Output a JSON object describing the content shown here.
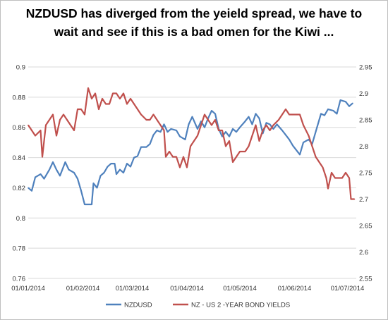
{
  "chart_data": {
    "type": "line",
    "title": "NZDUSD has diverged from the yeield spread, we have to wait and see if this is a bad omen for the Kiwi ...",
    "x_tick_labels": [
      "01/01/2014",
      "01/02/2014",
      "01/03/2014",
      "01/04/2014",
      "01/05/2014",
      "01/06/2014",
      "01/07/2014"
    ],
    "x_range": [
      "01/01/2014",
      "06/07/2014"
    ],
    "y_left": {
      "min": 0.76,
      "max": 0.9,
      "step": 0.02,
      "ticks": [
        "0.76",
        "0.78",
        "0.8",
        "0.82",
        "0.84",
        "0.86",
        "0.88",
        "0.9"
      ]
    },
    "y_right": {
      "min": 2.55,
      "max": 2.95,
      "step": 0.05,
      "ticks": [
        "2.55",
        "2.6",
        "2.65",
        "2.7",
        "2.75",
        "2.8",
        "2.85",
        "2.9",
        "2.95"
      ]
    },
    "grid": {
      "horizontal": true,
      "vertical": false
    },
    "legend_position": "bottom",
    "series": [
      {
        "name": "NZDUSD",
        "axis": "left",
        "color": "#4f81bd",
        "points": [
          [
            "01/01/2014",
            0.82
          ],
          [
            "03/01/2014",
            0.818
          ],
          [
            "05/01/2014",
            0.827
          ],
          [
            "08/01/2014",
            0.829
          ],
          [
            "10/01/2014",
            0.826
          ],
          [
            "13/01/2014",
            0.832
          ],
          [
            "15/01/2014",
            0.837
          ],
          [
            "17/01/2014",
            0.832
          ],
          [
            "19/01/2014",
            0.828
          ],
          [
            "22/01/2014",
            0.837
          ],
          [
            "24/01/2014",
            0.832
          ],
          [
            "27/01/2014",
            0.83
          ],
          [
            "29/01/2014",
            0.826
          ],
          [
            "31/01/2014",
            0.818
          ],
          [
            "02/02/2014",
            0.809
          ],
          [
            "06/02/2014",
            0.809
          ],
          [
            "07/02/2014",
            0.823
          ],
          [
            "09/02/2014",
            0.82
          ],
          [
            "11/02/2014",
            0.828
          ],
          [
            "13/02/2014",
            0.83
          ],
          [
            "15/02/2014",
            0.834
          ],
          [
            "17/02/2014",
            0.836
          ],
          [
            "19/02/2014",
            0.836
          ],
          [
            "20/02/2014",
            0.829
          ],
          [
            "22/02/2014",
            0.832
          ],
          [
            "24/02/2014",
            0.83
          ],
          [
            "26/02/2014",
            0.836
          ],
          [
            "28/02/2014",
            0.834
          ],
          [
            "02/03/2014",
            0.84
          ],
          [
            "04/03/2014",
            0.841
          ],
          [
            "06/03/2014",
            0.847
          ],
          [
            "09/03/2014",
            0.847
          ],
          [
            "11/03/2014",
            0.849
          ],
          [
            "13/03/2014",
            0.855
          ],
          [
            "15/03/2014",
            0.858
          ],
          [
            "17/03/2014",
            0.857
          ],
          [
            "19/03/2014",
            0.862
          ],
          [
            "21/03/2014",
            0.857
          ],
          [
            "23/03/2014",
            0.859
          ],
          [
            "26/03/2014",
            0.858
          ],
          [
            "28/03/2014",
            0.854
          ],
          [
            "31/03/2014",
            0.852
          ],
          [
            "02/04/2014",
            0.862
          ],
          [
            "04/04/2014",
            0.867
          ],
          [
            "07/04/2014",
            0.859
          ],
          [
            "09/04/2014",
            0.864
          ],
          [
            "11/04/2014",
            0.86
          ],
          [
            "13/04/2014",
            0.866
          ],
          [
            "15/04/2014",
            0.871
          ],
          [
            "17/04/2014",
            0.869
          ],
          [
            "19/04/2014",
            0.859
          ],
          [
            "21/04/2014",
            0.854
          ],
          [
            "23/04/2014",
            0.857
          ],
          [
            "25/04/2014",
            0.854
          ],
          [
            "27/04/2014",
            0.859
          ],
          [
            "29/04/2014",
            0.857
          ],
          [
            "01/05/2014",
            0.86
          ],
          [
            "04/05/2014",
            0.864
          ],
          [
            "06/05/2014",
            0.867
          ],
          [
            "08/05/2014",
            0.862
          ],
          [
            "10/05/2014",
            0.869
          ],
          [
            "12/05/2014",
            0.866
          ],
          [
            "14/05/2014",
            0.856
          ],
          [
            "16/05/2014",
            0.863
          ],
          [
            "18/05/2014",
            0.862
          ],
          [
            "20/05/2014",
            0.859
          ],
          [
            "22/05/2014",
            0.862
          ],
          [
            "25/05/2014",
            0.858
          ],
          [
            "27/05/2014",
            0.855
          ],
          [
            "29/05/2014",
            0.852
          ],
          [
            "31/05/2014",
            0.848
          ],
          [
            "02/06/2014",
            0.845
          ],
          [
            "04/06/2014",
            0.842
          ],
          [
            "06/06/2014",
            0.85
          ],
          [
            "09/06/2014",
            0.852
          ],
          [
            "11/06/2014",
            0.849
          ],
          [
            "13/06/2014",
            0.857
          ],
          [
            "16/06/2014",
            0.869
          ],
          [
            "18/06/2014",
            0.868
          ],
          [
            "20/06/2014",
            0.872
          ],
          [
            "23/06/2014",
            0.871
          ],
          [
            "25/06/2014",
            0.869
          ],
          [
            "27/06/2014",
            0.878
          ],
          [
            "30/06/2014",
            0.877
          ],
          [
            "02/07/2014",
            0.874
          ],
          [
            "04/07/2014",
            0.876
          ]
        ]
      },
      {
        "name": "NZ - US 2 -YEAR BOND YIELDS",
        "axis": "right",
        "color": "#c0504d",
        "points": [
          [
            "01/01/2014",
            2.84
          ],
          [
            "03/01/2014",
            2.83
          ],
          [
            "05/01/2014",
            2.82
          ],
          [
            "08/01/2014",
            2.83
          ],
          [
            "09/01/2014",
            2.78
          ],
          [
            "11/01/2014",
            2.84
          ],
          [
            "13/01/2014",
            2.85
          ],
          [
            "15/01/2014",
            2.86
          ],
          [
            "17/01/2014",
            2.82
          ],
          [
            "19/01/2014",
            2.85
          ],
          [
            "21/01/2014",
            2.86
          ],
          [
            "23/01/2014",
            2.85
          ],
          [
            "25/01/2014",
            2.84
          ],
          [
            "27/01/2014",
            2.83
          ],
          [
            "29/01/2014",
            2.87
          ],
          [
            "31/01/2014",
            2.87
          ],
          [
            "02/02/2014",
            2.86
          ],
          [
            "04/02/2014",
            2.91
          ],
          [
            "06/02/2014",
            2.89
          ],
          [
            "08/02/2014",
            2.9
          ],
          [
            "10/02/2014",
            2.87
          ],
          [
            "12/02/2014",
            2.89
          ],
          [
            "14/02/2014",
            2.88
          ],
          [
            "16/02/2014",
            2.88
          ],
          [
            "18/02/2014",
            2.9
          ],
          [
            "20/02/2014",
            2.9
          ],
          [
            "22/02/2014",
            2.89
          ],
          [
            "24/02/2014",
            2.9
          ],
          [
            "26/02/2014",
            2.88
          ],
          [
            "28/02/2014",
            2.89
          ],
          [
            "02/03/2014",
            2.88
          ],
          [
            "04/03/2014",
            2.87
          ],
          [
            "06/03/2014",
            2.86
          ],
          [
            "09/03/2014",
            2.85
          ],
          [
            "11/03/2014",
            2.85
          ],
          [
            "13/03/2014",
            2.86
          ],
          [
            "15/03/2014",
            2.85
          ],
          [
            "17/03/2014",
            2.84
          ],
          [
            "19/03/2014",
            2.83
          ],
          [
            "20/03/2014",
            2.78
          ],
          [
            "22/03/2014",
            2.79
          ],
          [
            "24/03/2014",
            2.78
          ],
          [
            "26/03/2014",
            2.78
          ],
          [
            "28/03/2014",
            2.76
          ],
          [
            "30/03/2014",
            2.78
          ],
          [
            "01/04/2014",
            2.76
          ],
          [
            "03/04/2014",
            2.8
          ],
          [
            "05/04/2014",
            2.81
          ],
          [
            "07/04/2014",
            2.82
          ],
          [
            "09/04/2014",
            2.84
          ],
          [
            "11/04/2014",
            2.86
          ],
          [
            "13/04/2014",
            2.85
          ],
          [
            "15/04/2014",
            2.84
          ],
          [
            "17/04/2014",
            2.85
          ],
          [
            "19/04/2014",
            2.83
          ],
          [
            "21/04/2014",
            2.83
          ],
          [
            "23/04/2014",
            2.8
          ],
          [
            "25/04/2014",
            2.81
          ],
          [
            "27/04/2014",
            2.77
          ],
          [
            "29/04/2014",
            2.78
          ],
          [
            "01/05/2014",
            2.79
          ],
          [
            "04/05/2014",
            2.79
          ],
          [
            "06/05/2014",
            2.8
          ],
          [
            "08/05/2014",
            2.82
          ],
          [
            "10/05/2014",
            2.84
          ],
          [
            "12/05/2014",
            2.81
          ],
          [
            "14/05/2014",
            2.83
          ],
          [
            "16/05/2014",
            2.84
          ],
          [
            "18/05/2014",
            2.83
          ],
          [
            "20/05/2014",
            2.84
          ],
          [
            "23/05/2014",
            2.85
          ],
          [
            "25/05/2014",
            2.86
          ],
          [
            "27/05/2014",
            2.87
          ],
          [
            "29/05/2014",
            2.86
          ],
          [
            "31/05/2014",
            2.86
          ],
          [
            "02/06/2014",
            2.86
          ],
          [
            "04/06/2014",
            2.86
          ],
          [
            "06/06/2014",
            2.84
          ],
          [
            "09/06/2014",
            2.82
          ],
          [
            "11/06/2014",
            2.8
          ],
          [
            "13/06/2014",
            2.78
          ],
          [
            "15/06/2014",
            2.77
          ],
          [
            "17/06/2014",
            2.76
          ],
          [
            "19/06/2014",
            2.74
          ],
          [
            "20/06/2014",
            2.72
          ],
          [
            "22/06/2014",
            2.75
          ],
          [
            "24/06/2014",
            2.74
          ],
          [
            "26/06/2014",
            2.74
          ],
          [
            "28/06/2014",
            2.74
          ],
          [
            "30/06/2014",
            2.75
          ],
          [
            "02/07/2014",
            2.74
          ],
          [
            "03/07/2014",
            2.7
          ],
          [
            "05/07/2014",
            2.7
          ]
        ]
      }
    ]
  }
}
